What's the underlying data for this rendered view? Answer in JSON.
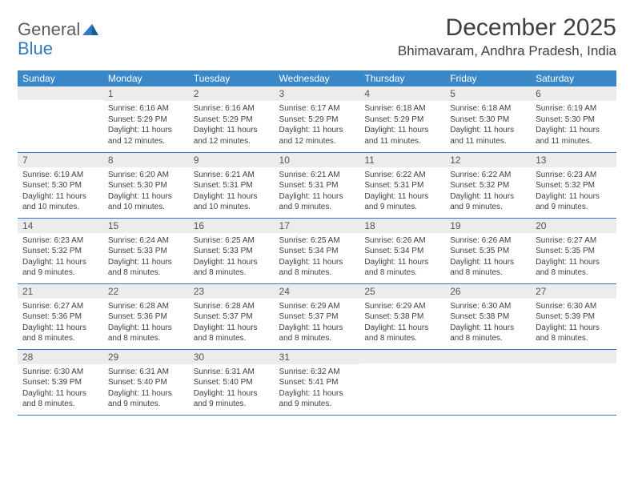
{
  "header": {
    "logo_word1": "General",
    "logo_word2": "Blue",
    "month_title": "December 2025",
    "location": "Bhimavaram, Andhra Pradesh, India"
  },
  "calendar": {
    "type": "table",
    "header_bg": "#3a87c8",
    "header_text_color": "#ffffff",
    "daynum_bg": "#ececec",
    "rule_color": "#2f79c2",
    "background_color": "#ffffff",
    "day_headers": [
      "Sunday",
      "Monday",
      "Tuesday",
      "Wednesday",
      "Thursday",
      "Friday",
      "Saturday"
    ],
    "weeks": [
      [
        {
          "day": "",
          "sunrise": "",
          "sunset": "",
          "daylight": ""
        },
        {
          "day": "1",
          "sunrise": "Sunrise: 6:16 AM",
          "sunset": "Sunset: 5:29 PM",
          "daylight": "Daylight: 11 hours and 12 minutes."
        },
        {
          "day": "2",
          "sunrise": "Sunrise: 6:16 AM",
          "sunset": "Sunset: 5:29 PM",
          "daylight": "Daylight: 11 hours and 12 minutes."
        },
        {
          "day": "3",
          "sunrise": "Sunrise: 6:17 AM",
          "sunset": "Sunset: 5:29 PM",
          "daylight": "Daylight: 11 hours and 12 minutes."
        },
        {
          "day": "4",
          "sunrise": "Sunrise: 6:18 AM",
          "sunset": "Sunset: 5:29 PM",
          "daylight": "Daylight: 11 hours and 11 minutes."
        },
        {
          "day": "5",
          "sunrise": "Sunrise: 6:18 AM",
          "sunset": "Sunset: 5:30 PM",
          "daylight": "Daylight: 11 hours and 11 minutes."
        },
        {
          "day": "6",
          "sunrise": "Sunrise: 6:19 AM",
          "sunset": "Sunset: 5:30 PM",
          "daylight": "Daylight: 11 hours and 11 minutes."
        }
      ],
      [
        {
          "day": "7",
          "sunrise": "Sunrise: 6:19 AM",
          "sunset": "Sunset: 5:30 PM",
          "daylight": "Daylight: 11 hours and 10 minutes."
        },
        {
          "day": "8",
          "sunrise": "Sunrise: 6:20 AM",
          "sunset": "Sunset: 5:30 PM",
          "daylight": "Daylight: 11 hours and 10 minutes."
        },
        {
          "day": "9",
          "sunrise": "Sunrise: 6:21 AM",
          "sunset": "Sunset: 5:31 PM",
          "daylight": "Daylight: 11 hours and 10 minutes."
        },
        {
          "day": "10",
          "sunrise": "Sunrise: 6:21 AM",
          "sunset": "Sunset: 5:31 PM",
          "daylight": "Daylight: 11 hours and 9 minutes."
        },
        {
          "day": "11",
          "sunrise": "Sunrise: 6:22 AM",
          "sunset": "Sunset: 5:31 PM",
          "daylight": "Daylight: 11 hours and 9 minutes."
        },
        {
          "day": "12",
          "sunrise": "Sunrise: 6:22 AM",
          "sunset": "Sunset: 5:32 PM",
          "daylight": "Daylight: 11 hours and 9 minutes."
        },
        {
          "day": "13",
          "sunrise": "Sunrise: 6:23 AM",
          "sunset": "Sunset: 5:32 PM",
          "daylight": "Daylight: 11 hours and 9 minutes."
        }
      ],
      [
        {
          "day": "14",
          "sunrise": "Sunrise: 6:23 AM",
          "sunset": "Sunset: 5:32 PM",
          "daylight": "Daylight: 11 hours and 9 minutes."
        },
        {
          "day": "15",
          "sunrise": "Sunrise: 6:24 AM",
          "sunset": "Sunset: 5:33 PM",
          "daylight": "Daylight: 11 hours and 8 minutes."
        },
        {
          "day": "16",
          "sunrise": "Sunrise: 6:25 AM",
          "sunset": "Sunset: 5:33 PM",
          "daylight": "Daylight: 11 hours and 8 minutes."
        },
        {
          "day": "17",
          "sunrise": "Sunrise: 6:25 AM",
          "sunset": "Sunset: 5:34 PM",
          "daylight": "Daylight: 11 hours and 8 minutes."
        },
        {
          "day": "18",
          "sunrise": "Sunrise: 6:26 AM",
          "sunset": "Sunset: 5:34 PM",
          "daylight": "Daylight: 11 hours and 8 minutes."
        },
        {
          "day": "19",
          "sunrise": "Sunrise: 6:26 AM",
          "sunset": "Sunset: 5:35 PM",
          "daylight": "Daylight: 11 hours and 8 minutes."
        },
        {
          "day": "20",
          "sunrise": "Sunrise: 6:27 AM",
          "sunset": "Sunset: 5:35 PM",
          "daylight": "Daylight: 11 hours and 8 minutes."
        }
      ],
      [
        {
          "day": "21",
          "sunrise": "Sunrise: 6:27 AM",
          "sunset": "Sunset: 5:36 PM",
          "daylight": "Daylight: 11 hours and 8 minutes."
        },
        {
          "day": "22",
          "sunrise": "Sunrise: 6:28 AM",
          "sunset": "Sunset: 5:36 PM",
          "daylight": "Daylight: 11 hours and 8 minutes."
        },
        {
          "day": "23",
          "sunrise": "Sunrise: 6:28 AM",
          "sunset": "Sunset: 5:37 PM",
          "daylight": "Daylight: 11 hours and 8 minutes."
        },
        {
          "day": "24",
          "sunrise": "Sunrise: 6:29 AM",
          "sunset": "Sunset: 5:37 PM",
          "daylight": "Daylight: 11 hours and 8 minutes."
        },
        {
          "day": "25",
          "sunrise": "Sunrise: 6:29 AM",
          "sunset": "Sunset: 5:38 PM",
          "daylight": "Daylight: 11 hours and 8 minutes."
        },
        {
          "day": "26",
          "sunrise": "Sunrise: 6:30 AM",
          "sunset": "Sunset: 5:38 PM",
          "daylight": "Daylight: 11 hours and 8 minutes."
        },
        {
          "day": "27",
          "sunrise": "Sunrise: 6:30 AM",
          "sunset": "Sunset: 5:39 PM",
          "daylight": "Daylight: 11 hours and 8 minutes."
        }
      ],
      [
        {
          "day": "28",
          "sunrise": "Sunrise: 6:30 AM",
          "sunset": "Sunset: 5:39 PM",
          "daylight": "Daylight: 11 hours and 8 minutes."
        },
        {
          "day": "29",
          "sunrise": "Sunrise: 6:31 AM",
          "sunset": "Sunset: 5:40 PM",
          "daylight": "Daylight: 11 hours and 9 minutes."
        },
        {
          "day": "30",
          "sunrise": "Sunrise: 6:31 AM",
          "sunset": "Sunset: 5:40 PM",
          "daylight": "Daylight: 11 hours and 9 minutes."
        },
        {
          "day": "31",
          "sunrise": "Sunrise: 6:32 AM",
          "sunset": "Sunset: 5:41 PM",
          "daylight": "Daylight: 11 hours and 9 minutes."
        },
        {
          "day": "",
          "sunrise": "",
          "sunset": "",
          "daylight": ""
        },
        {
          "day": "",
          "sunrise": "",
          "sunset": "",
          "daylight": ""
        },
        {
          "day": "",
          "sunrise": "",
          "sunset": "",
          "daylight": ""
        }
      ]
    ]
  }
}
